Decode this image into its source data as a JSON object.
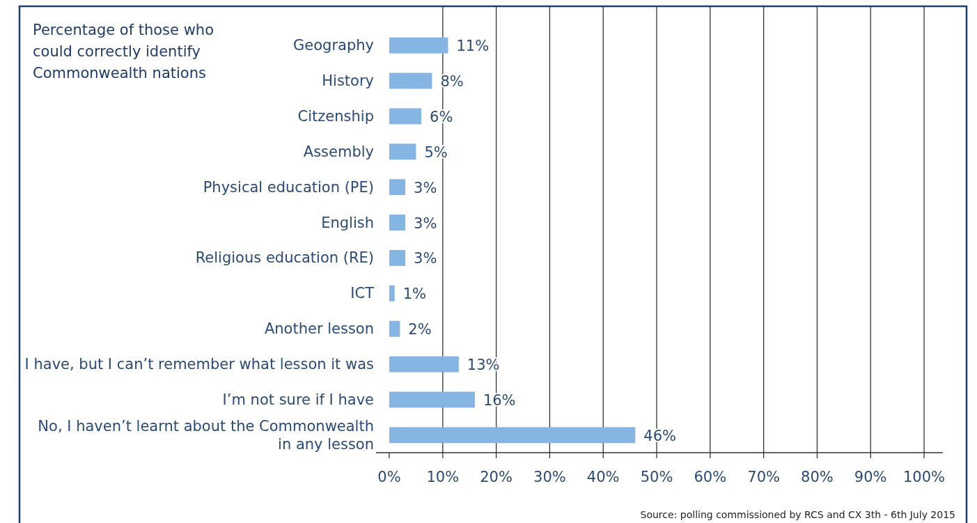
{
  "chart_data": {
    "type": "bar",
    "orientation": "horizontal",
    "title": "Percentage of those who\ncould correctly identify\nCommonwealth nations",
    "categories": [
      "Geography",
      "History",
      "Citzenship",
      "Assembly",
      "Physical education (PE)",
      "English",
      "Religious education (RE)",
      "ICT",
      "Another lesson",
      "I have, but I can’t remember what lesson it was",
      "I’m not sure if I have",
      "No, I haven’t learnt about the Commonwealth\nin any lesson"
    ],
    "values": [
      11,
      8,
      6,
      5,
      3,
      3,
      3,
      1,
      2,
      13,
      16,
      46
    ],
    "value_labels": [
      "11%",
      "8%",
      "6%",
      "5%",
      "3%",
      "3%",
      "3%",
      "1%",
      "2%",
      "13%",
      "16%",
      "46%"
    ],
    "color": "#85b5e3",
    "xlim": [
      -2.5,
      103.5
    ],
    "xticks": [
      {
        "value": 0,
        "label": "0%"
      },
      {
        "value": 10,
        "label": "10%"
      },
      {
        "value": 20,
        "label": "20%"
      },
      {
        "value": 30,
        "label": "30%"
      },
      {
        "value": 40,
        "label": "40%"
      },
      {
        "value": 50,
        "label": "50%"
      },
      {
        "value": 60,
        "label": "60%"
      },
      {
        "value": 70,
        "label": "70%"
      },
      {
        "value": 80,
        "label": "80%"
      },
      {
        "value": 90,
        "label": "90%"
      },
      {
        "value": 100,
        "label": "100%"
      }
    ],
    "grid": "x",
    "annotations": [
      "Source: polling commissioned by RCS and CX 3th - 6th July 2015"
    ]
  }
}
